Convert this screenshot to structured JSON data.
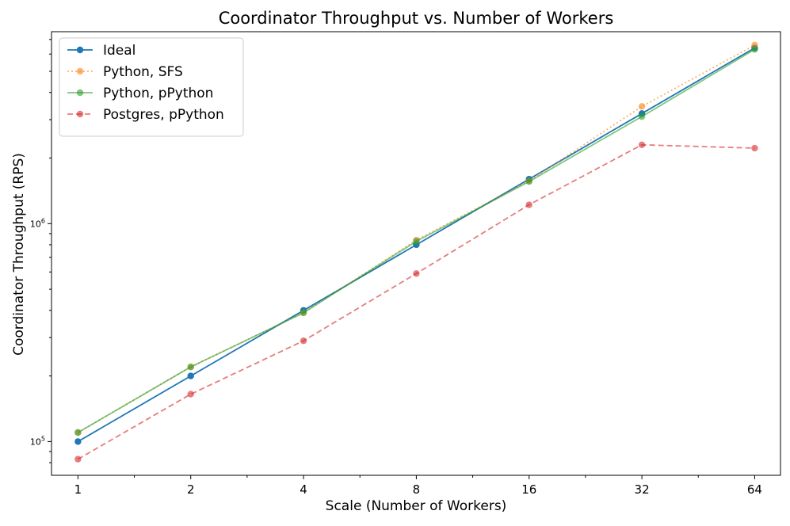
{
  "chart_data": {
    "type": "line",
    "title": "Coordinator Throughput vs. Number of Workers",
    "xlabel": "Scale (Number of Workers)",
    "ylabel": "Coordinator Throughput (RPS)",
    "x_scale": "log2",
    "y_scale": "log",
    "x": [
      1,
      2,
      4,
      8,
      16,
      32,
      64
    ],
    "x_tick_labels": [
      "1",
      "2",
      "4",
      "8",
      "16",
      "32",
      "64"
    ],
    "y_tick_labels": [
      {
        "value": 100000,
        "base": "10",
        "exp": "5"
      },
      {
        "value": 1000000,
        "base": "10",
        "exp": "6"
      }
    ],
    "xlim": [
      0.85,
      75
    ],
    "ylim": [
      70000,
      7600000
    ],
    "grid": false,
    "legend_position": "upper-left",
    "series": [
      {
        "name": "Ideal",
        "color": "#1f77b4",
        "style": "solid",
        "opacity": 1,
        "values": [
          100000,
          200000,
          400000,
          800000,
          1600000,
          3200000,
          6400000
        ]
      },
      {
        "name": "Python, SFS",
        "color": "#ff7f0e",
        "style": "dotted",
        "opacity": 0.6,
        "values": [
          110000,
          220000,
          390000,
          840000,
          1570000,
          3450000,
          6600000
        ]
      },
      {
        "name": "Python, pPython",
        "color": "#2ca02c",
        "style": "solid",
        "opacity": 0.6,
        "values": [
          110000,
          220000,
          390000,
          830000,
          1560000,
          3100000,
          6300000
        ]
      },
      {
        "name": "Postgres, pPython",
        "color": "#d62728",
        "style": "dashed",
        "opacity": 0.6,
        "values": [
          83000,
          165000,
          290000,
          590000,
          1220000,
          2300000,
          2220000
        ]
      }
    ]
  }
}
